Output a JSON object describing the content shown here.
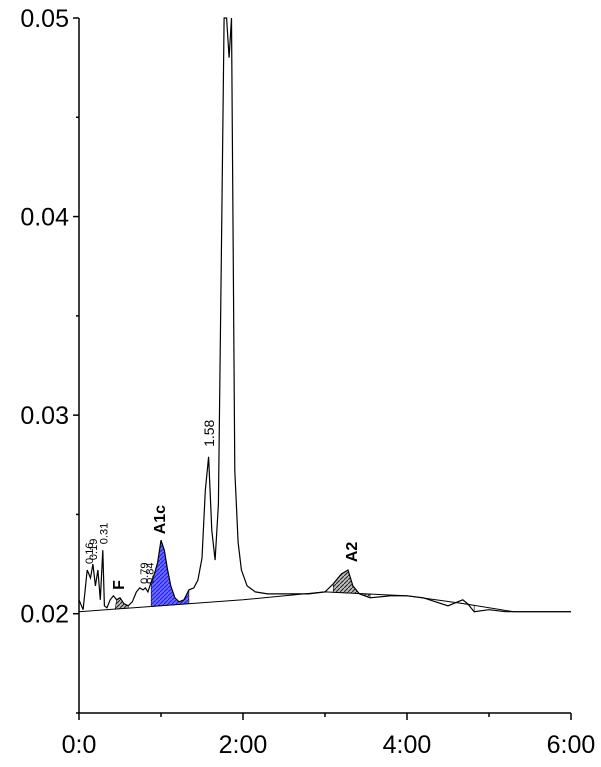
{
  "chart_data": {
    "type": "line",
    "title": "",
    "xlabel": "",
    "ylabel": "",
    "xlim": [
      0,
      6
    ],
    "ylim": [
      0.015,
      0.05
    ],
    "x_ticks": [
      {
        "value": 0,
        "label": "0:0"
      },
      {
        "value": 2,
        "label": "2:00"
      },
      {
        "value": 4,
        "label": "4:00"
      },
      {
        "value": 6,
        "label": "6:00"
      }
    ],
    "y_ticks": [
      {
        "value": 0.02,
        "label": "0.02"
      },
      {
        "value": 0.03,
        "label": "0.03"
      },
      {
        "value": 0.04,
        "label": "0.04"
      },
      {
        "value": 0.05,
        "label": "0.05"
      }
    ],
    "y_minor_ticks": [
      0.015,
      0.025,
      0.035,
      0.045
    ],
    "x_minor_ticks": [
      1,
      3,
      5
    ],
    "series": [
      {
        "x": [
          0.0,
          0.05,
          0.1,
          0.14,
          0.17,
          0.2,
          0.23,
          0.26,
          0.29,
          0.31,
          0.34,
          0.38,
          0.42,
          0.46,
          0.5,
          0.55,
          0.6,
          0.65,
          0.7,
          0.74,
          0.78,
          0.81,
          0.84,
          0.88,
          0.92,
          0.96,
          1.0,
          1.04,
          1.08,
          1.12,
          1.17,
          1.22,
          1.28,
          1.34,
          1.4,
          1.45,
          1.5,
          1.54,
          1.58,
          1.62,
          1.66,
          1.7,
          1.74,
          1.77,
          1.8,
          1.83,
          1.86,
          1.9,
          1.94,
          1.98,
          2.05,
          2.15,
          2.3,
          2.5,
          2.8,
          3.0,
          3.1,
          3.2,
          3.28,
          3.34,
          3.42,
          3.55,
          3.8,
          4.0,
          4.2,
          4.5,
          4.62,
          4.68,
          4.74,
          4.82,
          5.0,
          5.2,
          5.35,
          5.5,
          5.8,
          6.0
        ],
        "y": [
          0.0207,
          0.0202,
          0.0222,
          0.0218,
          0.0225,
          0.0214,
          0.0222,
          0.0207,
          0.0232,
          0.0204,
          0.0203,
          0.0207,
          0.0209,
          0.0207,
          0.0208,
          0.0205,
          0.0204,
          0.0206,
          0.0211,
          0.0213,
          0.0212,
          0.0213,
          0.0211,
          0.0216,
          0.022,
          0.0226,
          0.0237,
          0.0232,
          0.0222,
          0.0214,
          0.0208,
          0.0206,
          0.0207,
          0.0212,
          0.0213,
          0.0217,
          0.0228,
          0.0262,
          0.0279,
          0.0242,
          0.0227,
          0.0255,
          0.0395,
          0.05,
          0.05,
          0.048,
          0.05,
          0.0272,
          0.0236,
          0.0222,
          0.0214,
          0.0211,
          0.021,
          0.021,
          0.021,
          0.0211,
          0.0215,
          0.022,
          0.0222,
          0.0214,
          0.021,
          0.0208,
          0.0209,
          0.0209,
          0.0208,
          0.0204,
          0.0206,
          0.0207,
          0.0205,
          0.0201,
          0.0202,
          0.0201,
          0.0201,
          0.0201,
          0.0201,
          0.0201
        ]
      }
    ],
    "peak_labels": [
      {
        "text": "0.16",
        "x": 0.12,
        "y": 0.0223,
        "rotated": true,
        "style": "small"
      },
      {
        "text": "0.19",
        "x": 0.17,
        "y": 0.0225,
        "rotated": true,
        "style": "small"
      },
      {
        "text": "0.31",
        "x": 0.3,
        "y": 0.0233,
        "rotated": true,
        "style": "small"
      },
      {
        "text": "F",
        "x": 0.5,
        "y": 0.021,
        "rotated": true,
        "style": "bold"
      },
      {
        "text": "0.79",
        "x": 0.79,
        "y": 0.0213,
        "rotated": true,
        "style": "small"
      },
      {
        "text": "0.84",
        "x": 0.86,
        "y": 0.0213,
        "rotated": true,
        "style": "small"
      },
      {
        "text": "A1c",
        "x": 1.0,
        "y": 0.0238,
        "rotated": true,
        "style": "bold"
      },
      {
        "text": "1.58",
        "x": 1.6,
        "y": 0.0282,
        "rotated": true,
        "style": "normal"
      },
      {
        "text": "A2",
        "x": 3.34,
        "y": 0.0224,
        "rotated": true,
        "style": "bold"
      }
    ],
    "shaded_peaks": [
      {
        "label": "F",
        "color": "#555555"
      },
      {
        "label": "A1c",
        "color": "#3a3aff"
      },
      {
        "label": "A2",
        "color": "#555555"
      }
    ]
  }
}
